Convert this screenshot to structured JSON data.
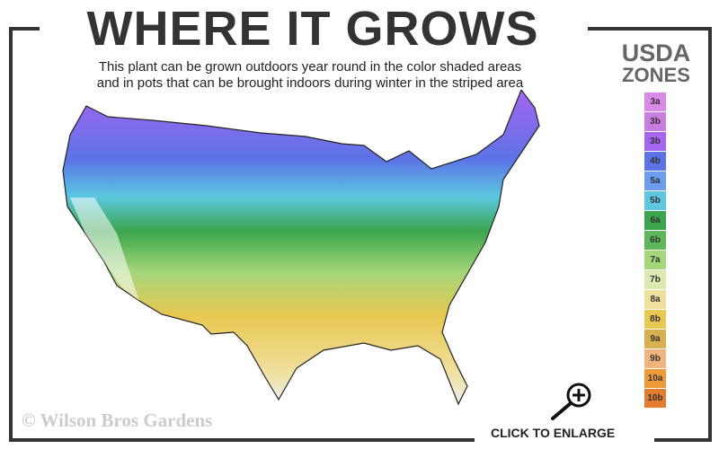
{
  "title": "WHERE IT GROWS",
  "subtitle_line1": "This plant can be grown outdoors year round in the color shaded areas",
  "subtitle_line2": "and in pots that can be brought indoors during winter in the striped area",
  "legend": {
    "title_line1": "USDA",
    "title_line2": "ZONES",
    "zones": [
      {
        "label": "3a",
        "color": "#d98ae6"
      },
      {
        "label": "3b",
        "color": "#c77ee0"
      },
      {
        "label": "3b",
        "color": "#a565f0"
      },
      {
        "label": "4b",
        "color": "#5b73e6"
      },
      {
        "label": "5a",
        "color": "#6c9cf0"
      },
      {
        "label": "5b",
        "color": "#5bc8e0"
      },
      {
        "label": "6a",
        "color": "#3aa54c"
      },
      {
        "label": "6b",
        "color": "#5cb85a"
      },
      {
        "label": "7a",
        "color": "#a4d67a"
      },
      {
        "label": "7b",
        "color": "#d8eab0"
      },
      {
        "label": "8a",
        "color": "#f0e0a0"
      },
      {
        "label": "8b",
        "color": "#e8c850"
      },
      {
        "label": "9a",
        "color": "#d8b050"
      },
      {
        "label": "9b",
        "color": "#f2b47e"
      },
      {
        "label": "10a",
        "color": "#ee9a3a"
      },
      {
        "label": "10b",
        "color": "#e47c30"
      }
    ]
  },
  "watermark": "© Wilson Bros Gardens",
  "enlarge_label": "CLICK TO ENLARGE",
  "icons": {
    "enlarge": "magnifier-plus-icon"
  }
}
